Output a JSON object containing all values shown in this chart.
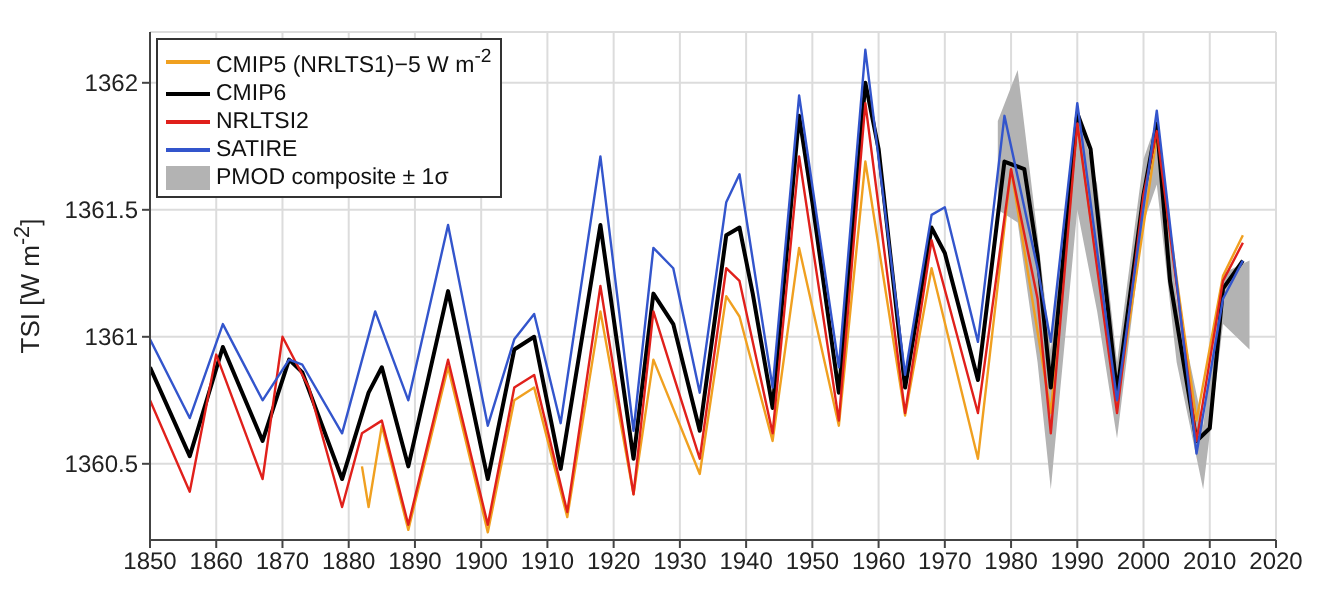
{
  "chart_data": {
    "type": "line",
    "ylabel": "TSI [W m$^{-2}$]",
    "xlim": [
      1850,
      2020
    ],
    "xticks": [
      1850,
      1860,
      1870,
      1880,
      1890,
      1900,
      1910,
      1920,
      1930,
      1940,
      1950,
      1960,
      1970,
      1980,
      1990,
      2000,
      2010,
      2020
    ],
    "ylim": [
      1360.2,
      1362.2
    ],
    "yticks": [
      1360.5,
      1361,
      1361.5,
      1362
    ],
    "grid": true,
    "legend": "top left",
    "series": [
      {
        "name": "CMIP5 (NRLTS1)−5 W m$^{-2}$",
        "color": "#f0a020",
        "x": [
          1882,
          1883,
          1885,
          1889,
          1895,
          1901,
          1905,
          1908,
          1913,
          1918,
          1923,
          1926,
          1933,
          1937,
          1939,
          1944,
          1948,
          1954,
          1958,
          1964,
          1968,
          1975,
          1980,
          1986,
          1990,
          1996,
          2002,
          2008,
          2012,
          2015
        ],
        "values": [
          1360.49,
          1360.33,
          1360.65,
          1360.24,
          1360.88,
          1360.23,
          1360.75,
          1360.8,
          1360.29,
          1361.1,
          1360.38,
          1360.91,
          1360.46,
          1361.16,
          1361.08,
          1360.59,
          1361.35,
          1360.65,
          1361.69,
          1360.69,
          1361.27,
          1360.52,
          1361.66,
          1360.7,
          1361.84,
          1360.73,
          1361.79,
          1360.67,
          1361.24,
          1361.4
        ]
      },
      {
        "name": "CMIP6",
        "color": "#000000",
        "x": [
          1850,
          1856,
          1861,
          1867,
          1871,
          1873,
          1879,
          1883,
          1885,
          1889,
          1895,
          1901,
          1905,
          1908,
          1912,
          1918,
          1923,
          1926,
          1929,
          1933,
          1937,
          1939,
          1941,
          1944,
          1948,
          1950,
          1954,
          1958,
          1960,
          1964,
          1968,
          1970,
          1975,
          1979,
          1982,
          1984,
          1986,
          1990,
          1992,
          1996,
          2000,
          2002,
          2004,
          2008,
          2010,
          2012,
          2015
        ],
        "values": [
          1360.88,
          1360.53,
          1360.96,
          1360.59,
          1360.91,
          1360.86,
          1360.44,
          1360.78,
          1360.88,
          1360.49,
          1361.18,
          1360.44,
          1360.95,
          1361.0,
          1360.48,
          1361.44,
          1360.52,
          1361.17,
          1361.05,
          1360.63,
          1361.4,
          1361.43,
          1361.17,
          1360.72,
          1361.87,
          1361.53,
          1360.78,
          1362.0,
          1361.74,
          1360.8,
          1361.43,
          1361.33,
          1360.83,
          1361.69,
          1361.66,
          1361.32,
          1360.8,
          1361.88,
          1361.74,
          1360.78,
          1361.56,
          1361.84,
          1361.22,
          1360.59,
          1360.64,
          1361.19,
          1361.3
        ]
      },
      {
        "name": "NRLTSI2",
        "color": "#e0201b",
        "x": [
          1850,
          1856,
          1860,
          1867,
          1870,
          1874,
          1879,
          1882,
          1885,
          1889,
          1895,
          1901,
          1905,
          1908,
          1913,
          1918,
          1923,
          1926,
          1929,
          1933,
          1937,
          1939,
          1944,
          1948,
          1954,
          1958,
          1964,
          1968,
          1975,
          1980,
          1984,
          1986,
          1990,
          1996,
          2000,
          2002,
          2008,
          2012,
          2015
        ],
        "values": [
          1360.75,
          1360.39,
          1360.93,
          1360.44,
          1361.0,
          1360.8,
          1360.33,
          1360.62,
          1360.67,
          1360.26,
          1360.91,
          1360.26,
          1360.8,
          1360.85,
          1360.31,
          1361.2,
          1360.38,
          1361.1,
          1360.85,
          1360.52,
          1361.27,
          1361.22,
          1360.62,
          1361.71,
          1360.67,
          1361.92,
          1360.7,
          1361.38,
          1360.7,
          1361.66,
          1361.15,
          1360.62,
          1361.84,
          1360.7,
          1361.56,
          1361.81,
          1360.59,
          1361.22,
          1361.37
        ]
      },
      {
        "name": "SATIRE",
        "color": "#3355cc",
        "x": [
          1850,
          1856,
          1861,
          1867,
          1871,
          1873,
          1879,
          1884,
          1889,
          1895,
          1901,
          1905,
          1908,
          1912,
          1918,
          1923,
          1926,
          1929,
          1933,
          1937,
          1939,
          1944,
          1948,
          1954,
          1958,
          1964,
          1968,
          1970,
          1975,
          1979,
          1984,
          1986,
          1990,
          1996,
          2002,
          2008,
          2012,
          2015
        ],
        "values": [
          1360.99,
          1360.68,
          1361.05,
          1360.75,
          1360.91,
          1360.89,
          1360.62,
          1361.1,
          1360.75,
          1361.44,
          1360.65,
          1360.99,
          1361.09,
          1360.66,
          1361.71,
          1360.63,
          1361.35,
          1361.27,
          1360.78,
          1361.53,
          1361.64,
          1360.8,
          1361.95,
          1360.88,
          1362.13,
          1360.85,
          1361.48,
          1361.51,
          1360.98,
          1361.87,
          1361.27,
          1360.98,
          1361.92,
          1360.75,
          1361.89,
          1360.54,
          1361.15,
          1361.3
        ]
      },
      {
        "name": "PMOD composite ± 1σ",
        "type": "area",
        "color": "#b3b3b3",
        "x": [
          1978,
          1981,
          1984,
          1986,
          1990,
          1993,
          1996,
          2000,
          2002,
          2005,
          2009,
          2012,
          2016
        ],
        "values": [
          null,
          null,
          null,
          null,
          null,
          null,
          null,
          null,
          null,
          null,
          null,
          null,
          null
        ],
        "lower": [
          1361.5,
          1361.45,
          1360.9,
          1360.4,
          1361.5,
          1361.1,
          1360.6,
          1361.45,
          1361.6,
          1360.9,
          1360.4,
          1361.05,
          1360.95
        ],
        "upper": [
          1361.85,
          1362.05,
          1361.4,
          1360.95,
          1361.9,
          1361.6,
          1360.9,
          1361.7,
          1361.85,
          1361.15,
          1360.65,
          1361.25,
          1361.3
        ]
      }
    ]
  }
}
